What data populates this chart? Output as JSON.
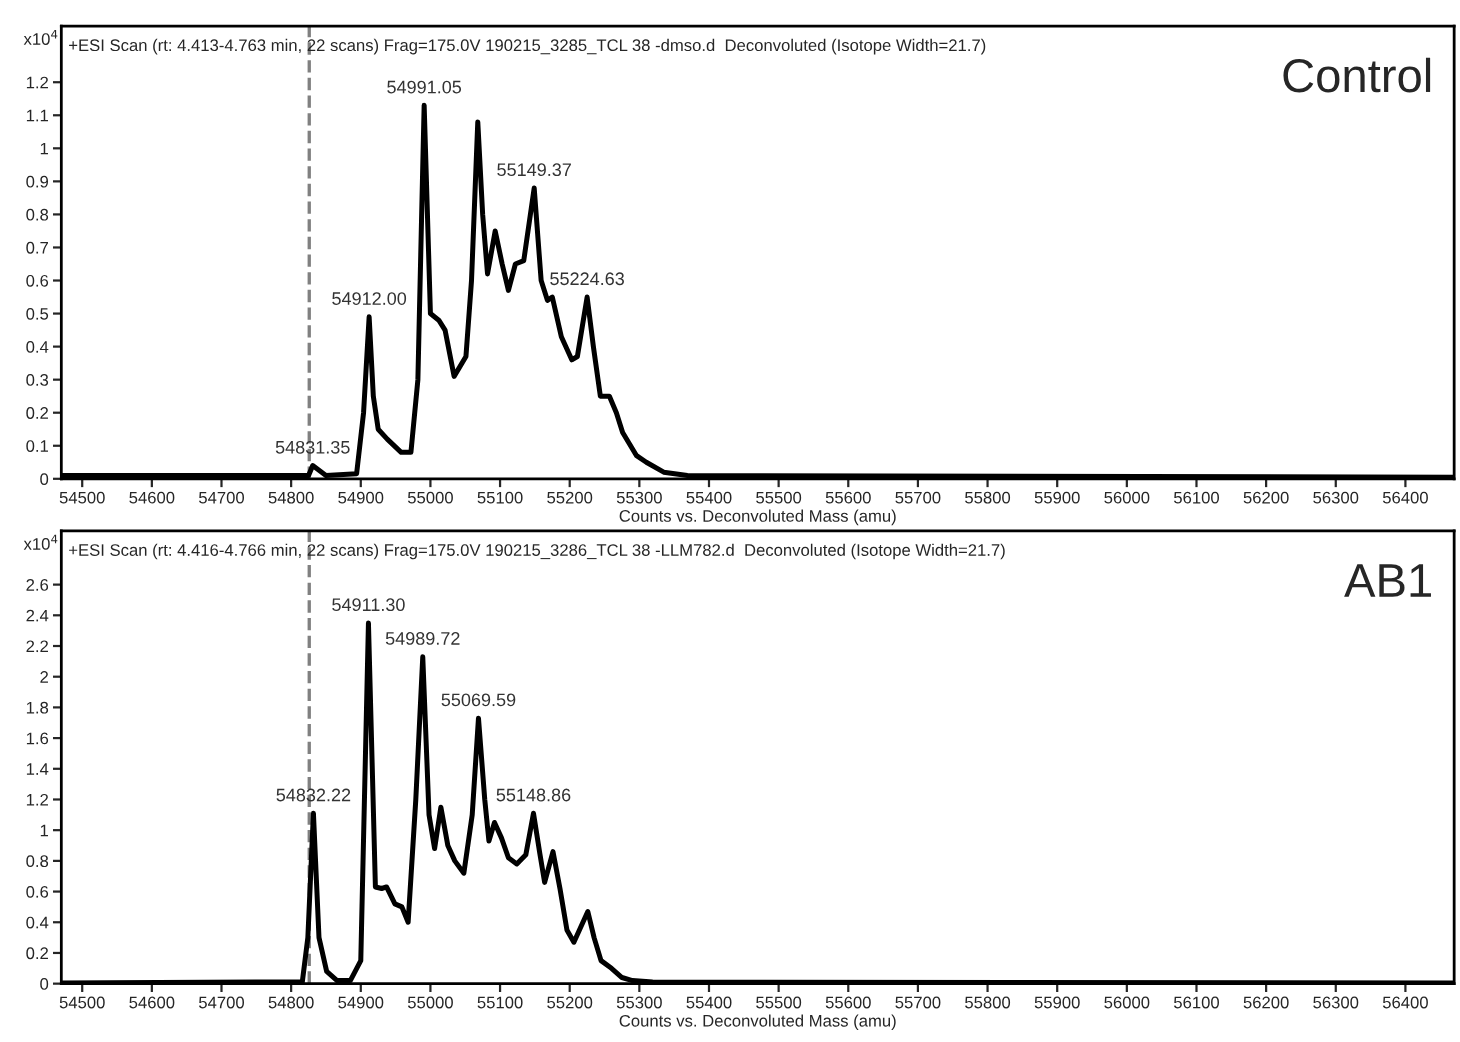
{
  "chart_data": [
    {
      "type": "line",
      "title": "+ESI Scan (rt: 4.413-4.763 min, 22 scans) Frag=175.0V 190215_3285_TCL 38 -dmso.d  Deconvoluted (Isotope Width=21.7)",
      "xlabel": "Counts vs. Deconvoluted Mass (amu)",
      "ylabel": "x10$^{4}$",
      "series": [
        {
          "color": "#000000",
          "x": [
            54470,
            54816,
            54825,
            54831,
            54850,
            54894,
            54904,
            54912,
            54918,
            54925,
            54938,
            54958,
            54972,
            54982,
            54991,
            55000,
            55012,
            55021,
            55034,
            55051,
            55059,
            55068,
            55075,
            55082,
            55093,
            55103,
            55112,
            55122,
            55134,
            55149,
            55159,
            55168,
            55175,
            55188,
            55203,
            55211,
            55225,
            55234,
            55244,
            55257,
            55267,
            55276,
            55296,
            55310,
            55335,
            55369,
            56470
          ],
          "values": [
            0.01,
            0.01,
            0.01,
            0.04,
            0.01,
            0.015,
            0.2,
            0.49,
            0.25,
            0.15,
            0.12,
            0.08,
            0.08,
            0.3,
            1.13,
            0.5,
            0.48,
            0.45,
            0.31,
            0.37,
            0.6,
            1.08,
            0.8,
            0.62,
            0.75,
            0.65,
            0.57,
            0.65,
            0.66,
            0.88,
            0.6,
            0.54,
            0.55,
            0.43,
            0.36,
            0.37,
            0.55,
            0.4,
            0.25,
            0.25,
            0.2,
            0.14,
            0.07,
            0.05,
            0.02,
            0.01,
            0.005
          ]
        }
      ],
      "xlim": [
        54470,
        56470
      ],
      "xticks": [
        54500,
        54600,
        54700,
        54800,
        54900,
        55000,
        55100,
        55200,
        55300,
        55400,
        55500,
        55600,
        55700,
        55800,
        55900,
        56000,
        56100,
        56200,
        56300,
        56400
      ],
      "ylim": [
        0,
        1.37
      ],
      "yticks": [
        0,
        0.1,
        0.2,
        0.3,
        0.4,
        0.5,
        0.6,
        0.7,
        0.8,
        0.9,
        1,
        1.1,
        1.2
      ],
      "ref_lines": [
        {
          "axis": "x",
          "value": 54826,
          "color": "#808080",
          "line_style": "dashed"
        }
      ],
      "annotations": [
        "Control",
        {
          "text": "54831.35",
          "x": 54831,
          "y": 0.04
        },
        {
          "text": "54912.00",
          "x": 54912,
          "y": 0.49
        },
        {
          "text": "54991.05",
          "x": 54991,
          "y": 1.13
        },
        {
          "text": "55149.37",
          "x": 55149,
          "y": 0.88
        },
        {
          "text": "55224.63",
          "x": 55225,
          "y": 0.55
        }
      ],
      "grid": false,
      "legend": false,
      "marker": "none",
      "line_style": "solid"
    },
    {
      "type": "line",
      "title": "+ESI Scan (rt: 4.416-4.766 min, 22 scans) Frag=175.0V 190215_3286_TCL 38 -LLM782.d  Deconvoluted (Isotope Width=21.7)",
      "xlabel": "Counts vs. Deconvoluted Mass (amu)",
      "ylabel": "x10$^{4}$",
      "series": [
        {
          "color": "#000000",
          "x": [
            54470,
            54749,
            54816,
            54824,
            54832,
            54840,
            54851,
            54866,
            54885,
            54900,
            54911,
            54921,
            54930,
            54937,
            54949,
            54959,
            54968,
            54979,
            54989,
            54998,
            55006,
            55015,
            55025,
            55035,
            55048,
            55060,
            55069,
            55078,
            55084,
            55092,
            55102,
            55112,
            55124,
            55137,
            55148,
            55157,
            55164,
            55176,
            55186,
            55196,
            55206,
            55219,
            55226,
            55235,
            55245,
            55260,
            55275,
            55290,
            55319,
            56470
          ],
          "values": [
            0.005,
            0.01,
            0.01,
            0.3,
            1.11,
            0.3,
            0.08,
            0.02,
            0.02,
            0.15,
            2.35,
            0.63,
            0.62,
            0.63,
            0.52,
            0.5,
            0.4,
            1.2,
            2.13,
            1.1,
            0.88,
            1.15,
            0.9,
            0.8,
            0.72,
            1.1,
            1.73,
            1.2,
            0.93,
            1.05,
            0.95,
            0.82,
            0.78,
            0.84,
            1.11,
            0.85,
            0.66,
            0.86,
            0.62,
            0.35,
            0.27,
            0.4,
            0.47,
            0.3,
            0.15,
            0.1,
            0.04,
            0.02,
            0.01,
            0.005
          ]
        }
      ],
      "xlim": [
        54470,
        56470
      ],
      "xticks": [
        54500,
        54600,
        54700,
        54800,
        54900,
        55000,
        55100,
        55200,
        55300,
        55400,
        55500,
        55600,
        55700,
        55800,
        55900,
        56000,
        56100,
        56200,
        56300,
        56400
      ],
      "ylim": [
        0,
        2.95
      ],
      "yticks": [
        0,
        0.2,
        0.4,
        0.6,
        0.8,
        1,
        1.2,
        1.4,
        1.6,
        1.8,
        2,
        2.2,
        2.4,
        2.6
      ],
      "ref_lines": [
        {
          "axis": "x",
          "value": 54826,
          "color": "#808080",
          "line_style": "dashed"
        }
      ],
      "annotations": [
        "AB1",
        {
          "text": "54832.22",
          "x": 54832,
          "y": 1.11
        },
        {
          "text": "54911.30",
          "x": 54911,
          "y": 2.35
        },
        {
          "text": "54989.72",
          "x": 54989,
          "y": 2.13
        },
        {
          "text": "55069.59",
          "x": 55069,
          "y": 1.73
        },
        {
          "text": "55148.86",
          "x": 55148,
          "y": 1.11
        }
      ],
      "grid": false,
      "legend": false,
      "marker": "none",
      "line_style": "solid"
    }
  ]
}
